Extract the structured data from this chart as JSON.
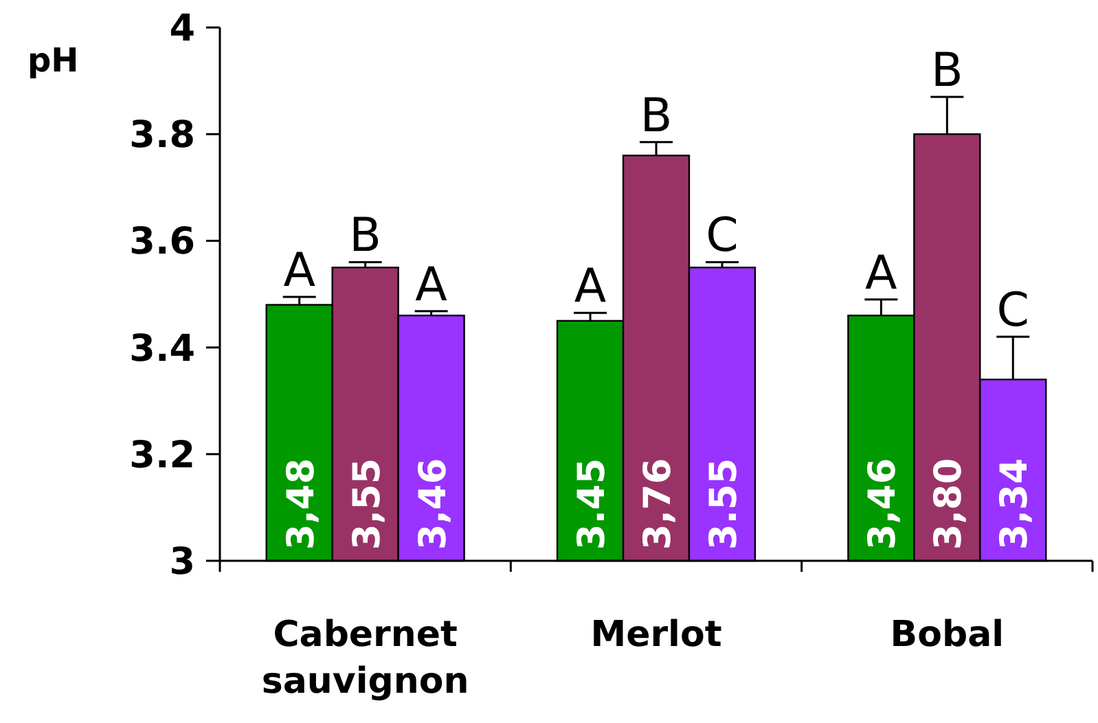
{
  "chart_data": {
    "type": "bar",
    "ylabel": "pH",
    "categories": [
      "Cabernet sauvignon",
      "Merlot",
      "Bobal"
    ],
    "series": [
      {
        "color": "#009900",
        "values": [
          3.48,
          3.45,
          3.46
        ],
        "errors": [
          0.015,
          0.015,
          0.03
        ],
        "value_labels": [
          "3,48",
          "3.45",
          "3,46"
        ]
      },
      {
        "color": "#993366",
        "values": [
          3.55,
          3.76,
          3.8
        ],
        "errors": [
          0.01,
          0.025,
          0.07
        ],
        "value_labels": [
          "3,55",
          "3,76",
          "3,80"
        ]
      },
      {
        "color": "#9933ff",
        "values": [
          3.46,
          3.55,
          3.34
        ],
        "errors": [
          0.008,
          0.01,
          0.08
        ],
        "value_labels": [
          "3,46",
          "3.55",
          "3,34"
        ]
      }
    ],
    "ylim": [
      3,
      4
    ],
    "yticks": [
      3,
      3.2,
      3.4,
      3.6,
      3.8,
      4
    ],
    "grid": false,
    "annotations": [
      "A",
      "B",
      "A",
      "A",
      "B",
      "C",
      "A",
      "B",
      "C"
    ]
  }
}
